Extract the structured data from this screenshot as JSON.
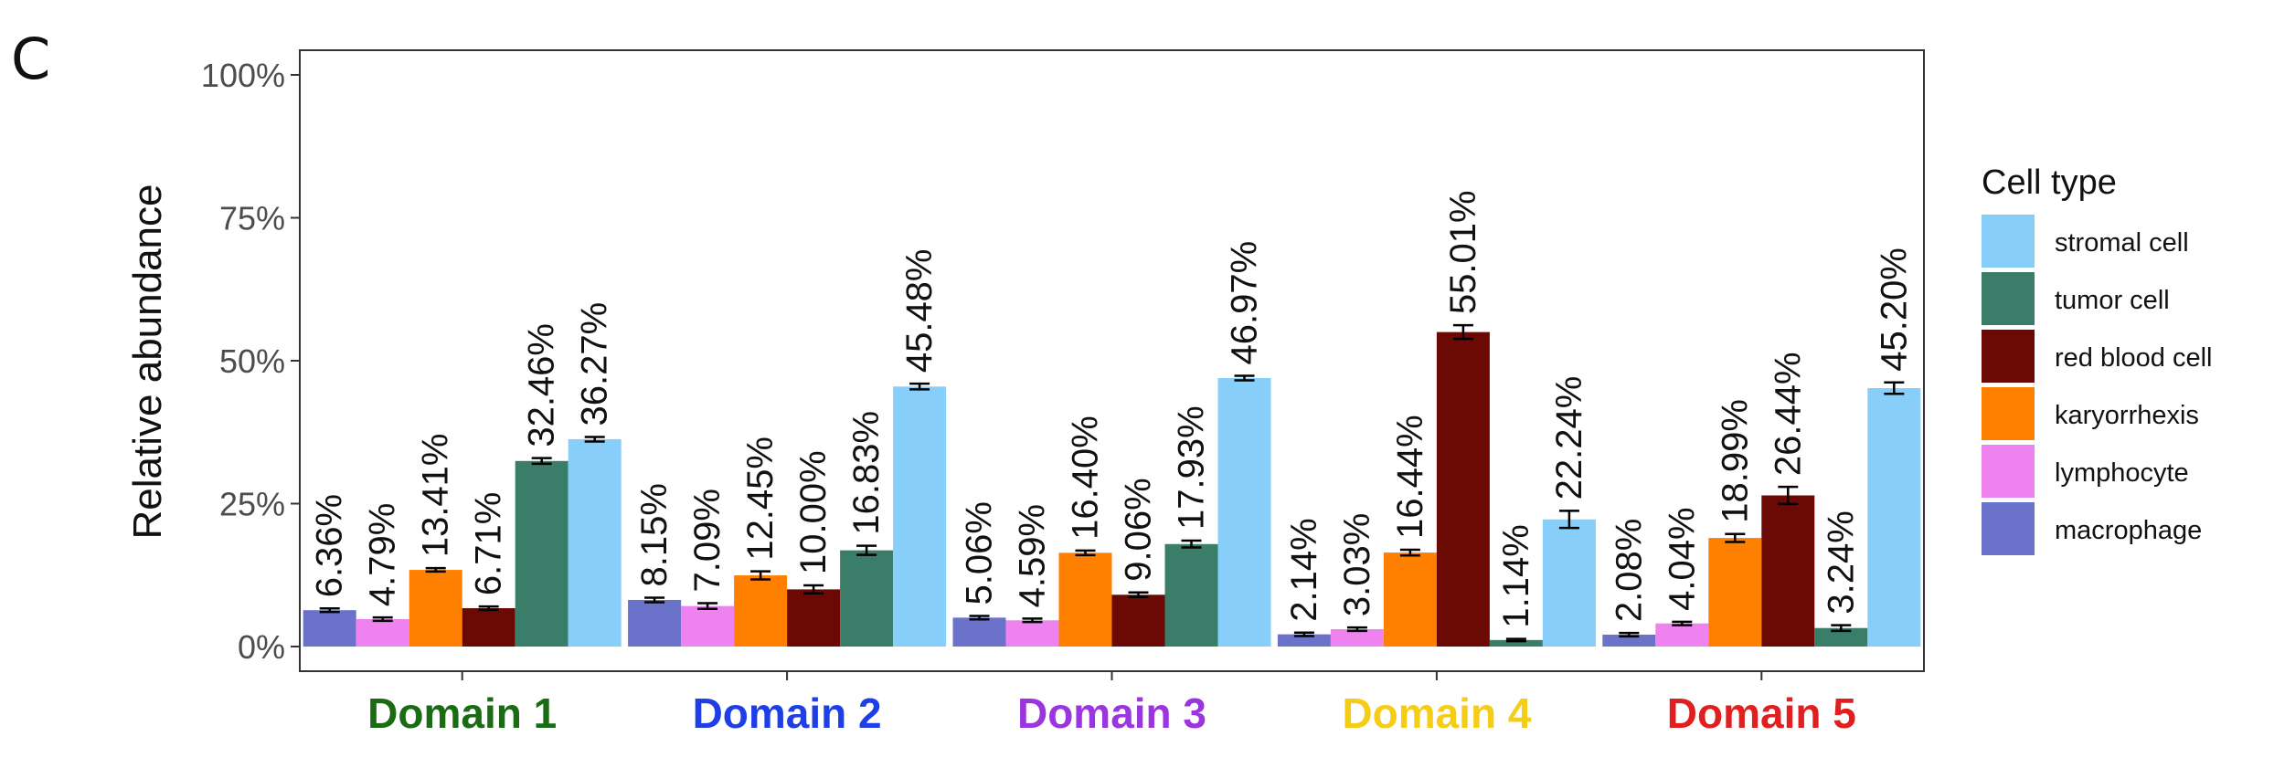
{
  "panel_label": "C",
  "chart_data": {
    "type": "bar",
    "ylabel": "Relative abundance",
    "xlabel": "",
    "ylim": [
      0,
      100
    ],
    "yticks": [
      "0%",
      "25%",
      "50%",
      "75%",
      "100%"
    ],
    "ytick_values": [
      0,
      25,
      50,
      75,
      100
    ],
    "grid": false,
    "legend": {
      "title": "Cell type",
      "placement": "right",
      "order": [
        "stromal cell",
        "tumor cell",
        "red blood cell",
        "karyorrhexis",
        "lymphocyte",
        "macrophage"
      ]
    },
    "categories": [
      "Domain 1",
      "Domain 2",
      "Domain 3",
      "Domain 4",
      "Domain 5"
    ],
    "category_colors": [
      "#1a6b14",
      "#1f3fe6",
      "#9a35e0",
      "#f5cc16",
      "#e02020"
    ],
    "series": [
      {
        "name": "macrophage",
        "color": "#6b72c9",
        "values": [
          6.36,
          8.15,
          5.06,
          2.14,
          2.08
        ],
        "labels": [
          "6.36%",
          "8.15%",
          "5.06%",
          "2.14%",
          "2.08%"
        ],
        "err": [
          0.3,
          0.4,
          0.3,
          0.3,
          0.3
        ]
      },
      {
        "name": "lymphocyte",
        "color": "#ee82ee",
        "values": [
          4.79,
          7.09,
          4.59,
          3.03,
          4.04
        ],
        "labels": [
          "4.79%",
          "7.09%",
          "4.59%",
          "3.03%",
          "4.04%"
        ],
        "err": [
          0.3,
          0.5,
          0.3,
          0.3,
          0.3
        ]
      },
      {
        "name": "karyorrhexis",
        "color": "#ff7f00",
        "values": [
          13.41,
          12.45,
          16.4,
          16.44,
          18.99
        ],
        "labels": [
          "13.41%",
          "12.45%",
          "16.40%",
          "16.44%",
          "18.99%"
        ],
        "err": [
          0.3,
          0.7,
          0.4,
          0.5,
          0.7
        ]
      },
      {
        "name": "red blood cell",
        "color": "#6b0a05",
        "values": [
          6.71,
          10.0,
          9.06,
          55.01,
          26.44
        ],
        "labels": [
          "6.71%",
          "10.00%",
          "9.06%",
          "55.01%",
          "26.44%"
        ],
        "err": [
          0.3,
          0.7,
          0.4,
          1.2,
          1.5
        ]
      },
      {
        "name": "tumor cell",
        "color": "#3a7d68",
        "values": [
          32.46,
          16.83,
          17.93,
          1.14,
          3.24
        ],
        "labels": [
          "32.46%",
          "16.83%",
          "17.93%",
          "1.14%",
          "3.24%"
        ],
        "err": [
          0.5,
          0.8,
          0.6,
          0.2,
          0.5
        ]
      },
      {
        "name": "stromal cell",
        "color": "#87cefa",
        "values": [
          36.27,
          45.48,
          46.97,
          22.24,
          45.2
        ],
        "labels": [
          "36.27%",
          "45.48%",
          "46.97%",
          "22.24%",
          "45.20%"
        ],
        "err": [
          0.4,
          0.5,
          0.4,
          1.5,
          1.0
        ]
      }
    ]
  }
}
